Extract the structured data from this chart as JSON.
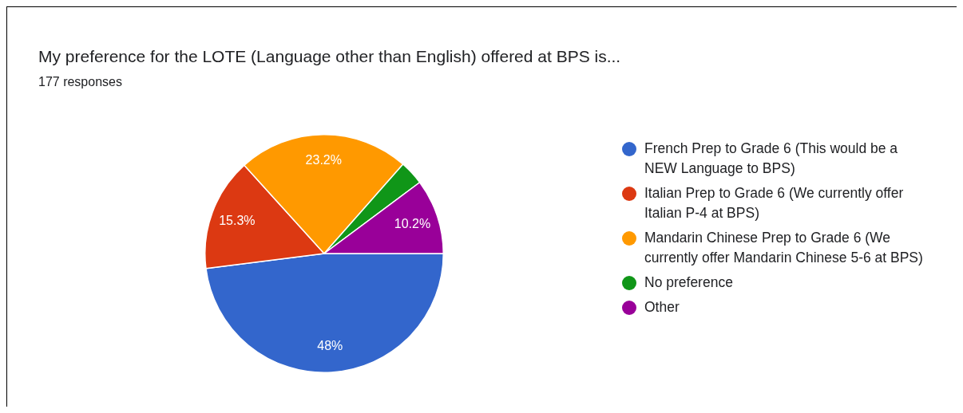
{
  "chart_data": {
    "type": "pie",
    "title": "My preference for the LOTE (Language other than English) offered at BPS is...",
    "subtitle": "177 responses",
    "categories": [
      "French Prep to Grade 6 (This would be a NEW Language to BPS)",
      "Italian Prep to Grade 6 (We currently offer Italian P-4 at BPS)",
      "Mandarin Chinese Prep to Grade 6 (We currently offer Mandarin Chinese 5-6 at BPS)",
      "No preference",
      "Other"
    ],
    "values": [
      48,
      15.3,
      23.2,
      3.3,
      10.2
    ],
    "colors": [
      "#3366cc",
      "#dc3912",
      "#ff9900",
      "#109618",
      "#990099"
    ],
    "value_labels": [
      "48%",
      "15.3%",
      "23.2%",
      null,
      "10.2%"
    ],
    "legend": "right"
  }
}
